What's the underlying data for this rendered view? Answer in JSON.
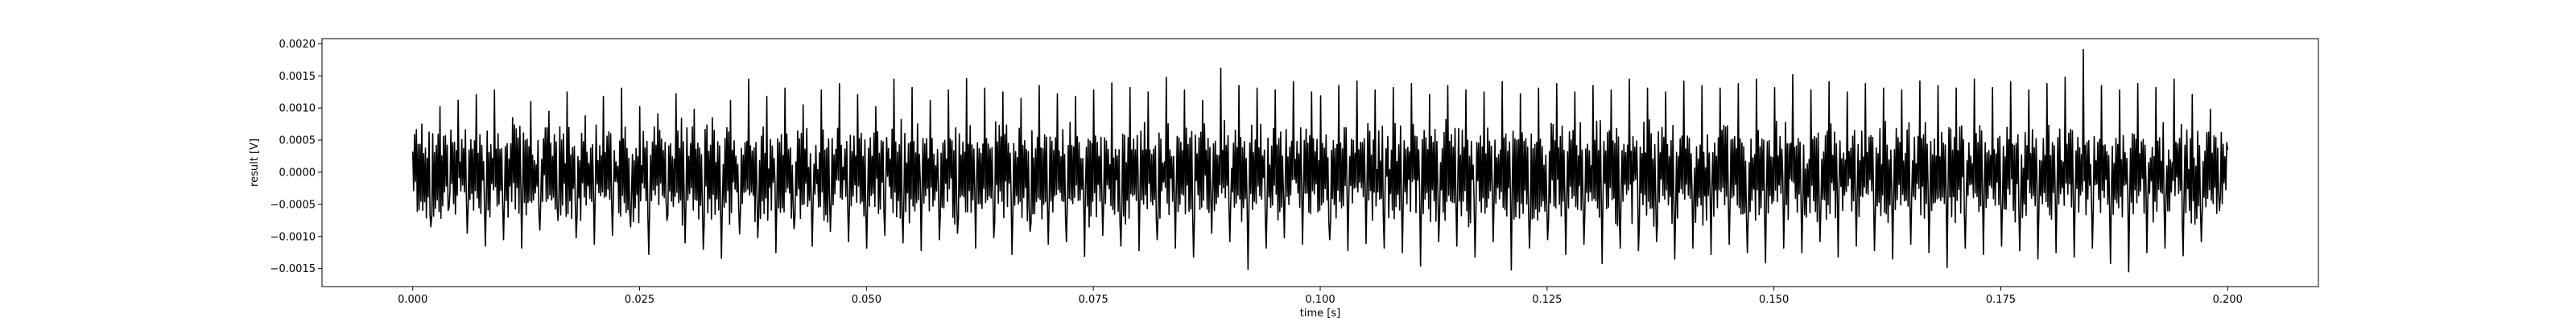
{
  "chart_data": {
    "type": "line",
    "xlabel": "time [s]",
    "ylabel": "result [V]",
    "xlim": [
      -0.01,
      0.21
    ],
    "ylim": [
      -0.00178,
      0.00208
    ],
    "xticks": [
      {
        "value": 0.0,
        "label": "0.000"
      },
      {
        "value": 0.025,
        "label": "0.025"
      },
      {
        "value": 0.05,
        "label": "0.050"
      },
      {
        "value": 0.075,
        "label": "0.075"
      },
      {
        "value": 0.1,
        "label": "0.100"
      },
      {
        "value": 0.125,
        "label": "0.125"
      },
      {
        "value": 0.15,
        "label": "0.150"
      },
      {
        "value": 0.175,
        "label": "0.175"
      },
      {
        "value": 0.2,
        "label": "0.200"
      }
    ],
    "yticks": [
      {
        "value": -0.0015,
        "label": "−0.0015"
      },
      {
        "value": -0.001,
        "label": "−0.0010"
      },
      {
        "value": -0.0005,
        "label": "−0.0005"
      },
      {
        "value": 0.0,
        "label": "0.0000"
      },
      {
        "value": 0.0005,
        "label": "0.0005"
      },
      {
        "value": 0.001,
        "label": "0.0010"
      },
      {
        "value": 0.0015,
        "label": "0.0015"
      },
      {
        "value": 0.002,
        "label": "0.0020"
      }
    ],
    "grid": false,
    "series": [
      {
        "color": "#000000",
        "x_start": 0.0,
        "x_end": 0.2,
        "points": 2000,
        "amplitude": 0.00065,
        "noise": 0.00042,
        "y": [
          0.00032,
          0.00075,
          -0.00085,
          0.00102,
          -0.00055,
          0.00112,
          -0.00095,
          0.00121,
          -0.00115,
          0.00128,
          -0.00105,
          0.00085,
          -0.00118,
          0.0011,
          -0.0009,
          0.00095,
          -0.00075,
          0.00125,
          -0.00102,
          0.00088,
          -0.00112,
          0.00118,
          -0.00098,
          0.00131,
          -0.00085,
          0.00102,
          -0.00128,
          0.00091,
          -0.00075,
          0.00122,
          -0.0011,
          0.00098,
          -0.0012,
          0.00085,
          -0.00134,
          0.00112,
          -0.00096,
          0.00145,
          -0.00102,
          0.00118,
          -0.00125,
          0.00131,
          -0.00088,
          0.00105,
          -0.00115,
          0.00128,
          -0.00092,
          0.00138,
          -0.00108,
          0.00121,
          -0.00118,
          0.00102,
          -0.00098,
          0.00145,
          -0.0011,
          0.00132,
          -0.00122,
          0.00112,
          -0.00105,
          0.00128,
          -0.00095,
          0.00146,
          -0.00118,
          0.00131,
          -0.00102,
          0.00125,
          -0.00128,
          0.00115,
          -0.00092,
          0.00135,
          -0.00112,
          0.00122,
          -0.00108,
          0.00118,
          -0.00131,
          0.00128,
          -0.00098,
          0.00139,
          -0.00115,
          0.00132,
          -0.00122,
          0.00125,
          -0.00105,
          0.00148,
          -0.00118,
          0.00128,
          -0.00132,
          0.00112,
          -0.00095,
          0.00162,
          -0.00108,
          0.00135,
          -0.00151,
          0.00131,
          -0.00118,
          0.00128,
          -0.00102,
          0.00141,
          -0.00112,
          0.00125,
          -0.00128,
          0.00119,
          -0.00105,
          0.00135,
          -0.00122,
          0.00142,
          -0.00111,
          0.00128,
          -0.00118,
          0.00132,
          -0.00125,
          0.00138,
          -0.00146,
          0.00121,
          -0.00108,
          0.00135,
          -0.00115,
          0.00128,
          -0.00132,
          0.00125,
          -0.00108,
          0.00141,
          -0.00152,
          0.00122,
          -0.00118,
          0.00131,
          -0.00105,
          0.00138,
          -0.00128,
          0.00125,
          -0.00112,
          0.00135,
          -0.00142,
          0.00128,
          -0.00118,
          0.00145,
          -0.00122,
          0.00131,
          -0.00108,
          0.00125,
          -0.00135,
          0.00142,
          -0.00118,
          0.00135,
          -0.00128,
          0.00131,
          -0.00112,
          0.00138,
          -0.00125,
          0.00145,
          -0.00141,
          0.00132,
          -0.00118,
          0.00152,
          -0.00125,
          0.00128,
          -0.00108,
          0.00141,
          -0.00132,
          0.00125,
          -0.00115,
          0.00138,
          -0.00122,
          0.00131,
          -0.00135,
          0.00128,
          -0.00112,
          0.00142,
          -0.00125,
          0.00135,
          -0.00148,
          0.00131,
          -0.00118,
          0.00145,
          -0.00128,
          0.00132,
          -0.00115,
          0.00141,
          -0.00122,
          0.00128,
          -0.00135,
          0.00138,
          -0.00125,
          0.00148,
          -0.00132,
          0.00191,
          -0.00118,
          0.00135,
          -0.00142,
          0.00128,
          -0.00155,
          0.00138,
          -0.00125,
          0.00132,
          -0.00118,
          0.00145,
          -0.0013,
          0.00121,
          -0.00108,
          0.00098,
          -0.0006,
          0.00035
        ]
      }
    ]
  }
}
